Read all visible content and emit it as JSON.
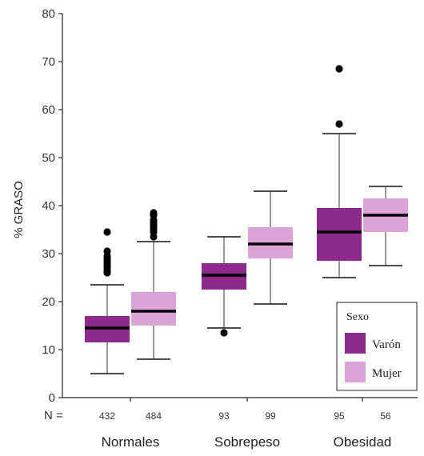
{
  "chart_data": {
    "type": "boxplot",
    "ylabel": "% GRASO",
    "ylim": [
      0,
      80
    ],
    "yticks": [
      "0",
      "10",
      "20",
      "30",
      "40",
      "50",
      "60",
      "70",
      "80"
    ],
    "n_prefix": "N =",
    "legend": {
      "title": "Sexo",
      "placement": "bottom-right"
    },
    "series": [
      {
        "name": "Varón",
        "color": "#8e2a8c"
      },
      {
        "name": "Mujer",
        "color": "#dca3d8"
      }
    ],
    "groups": [
      {
        "label": "Normales",
        "boxes": [
          {
            "series": "Varón",
            "n": "432",
            "whisker_low": 5,
            "q1": 11.5,
            "median": 14.5,
            "q3": 17,
            "whisker_high": 23.5,
            "outliers": [
              26,
              26.5,
              27,
              27.5,
              28,
              28.5,
              29,
              29.5,
              30.5,
              34.5
            ]
          },
          {
            "series": "Mujer",
            "n": "484",
            "whisker_low": 8,
            "q1": 15,
            "median": 18,
            "q3": 22,
            "whisker_high": 32.5,
            "outliers": [
              33.5,
              34.5,
              35,
              35.5,
              36,
              36.5,
              37,
              38,
              38.5
            ]
          }
        ]
      },
      {
        "label": "Sobrepeso",
        "boxes": [
          {
            "series": "Varón",
            "n": "93",
            "whisker_low": 14.5,
            "q1": 22.5,
            "median": 25.5,
            "q3": 28,
            "whisker_high": 33.5,
            "outliers": [
              13.5
            ]
          },
          {
            "series": "Mujer",
            "n": "99",
            "whisker_low": 19.5,
            "q1": 29,
            "median": 32,
            "q3": 35.5,
            "whisker_high": 43,
            "outliers": []
          }
        ]
      },
      {
        "label": "Obesidad",
        "boxes": [
          {
            "series": "Varón",
            "n": "95",
            "whisker_low": 25,
            "q1": 28.5,
            "median": 34.5,
            "q3": 39.5,
            "whisker_high": 55,
            "outliers": [
              57,
              68.5
            ]
          },
          {
            "series": "Mujer",
            "n": "56",
            "whisker_low": 27.5,
            "q1": 34.5,
            "median": 38,
            "q3": 41.5,
            "whisker_high": 44,
            "outliers": []
          }
        ]
      }
    ]
  }
}
